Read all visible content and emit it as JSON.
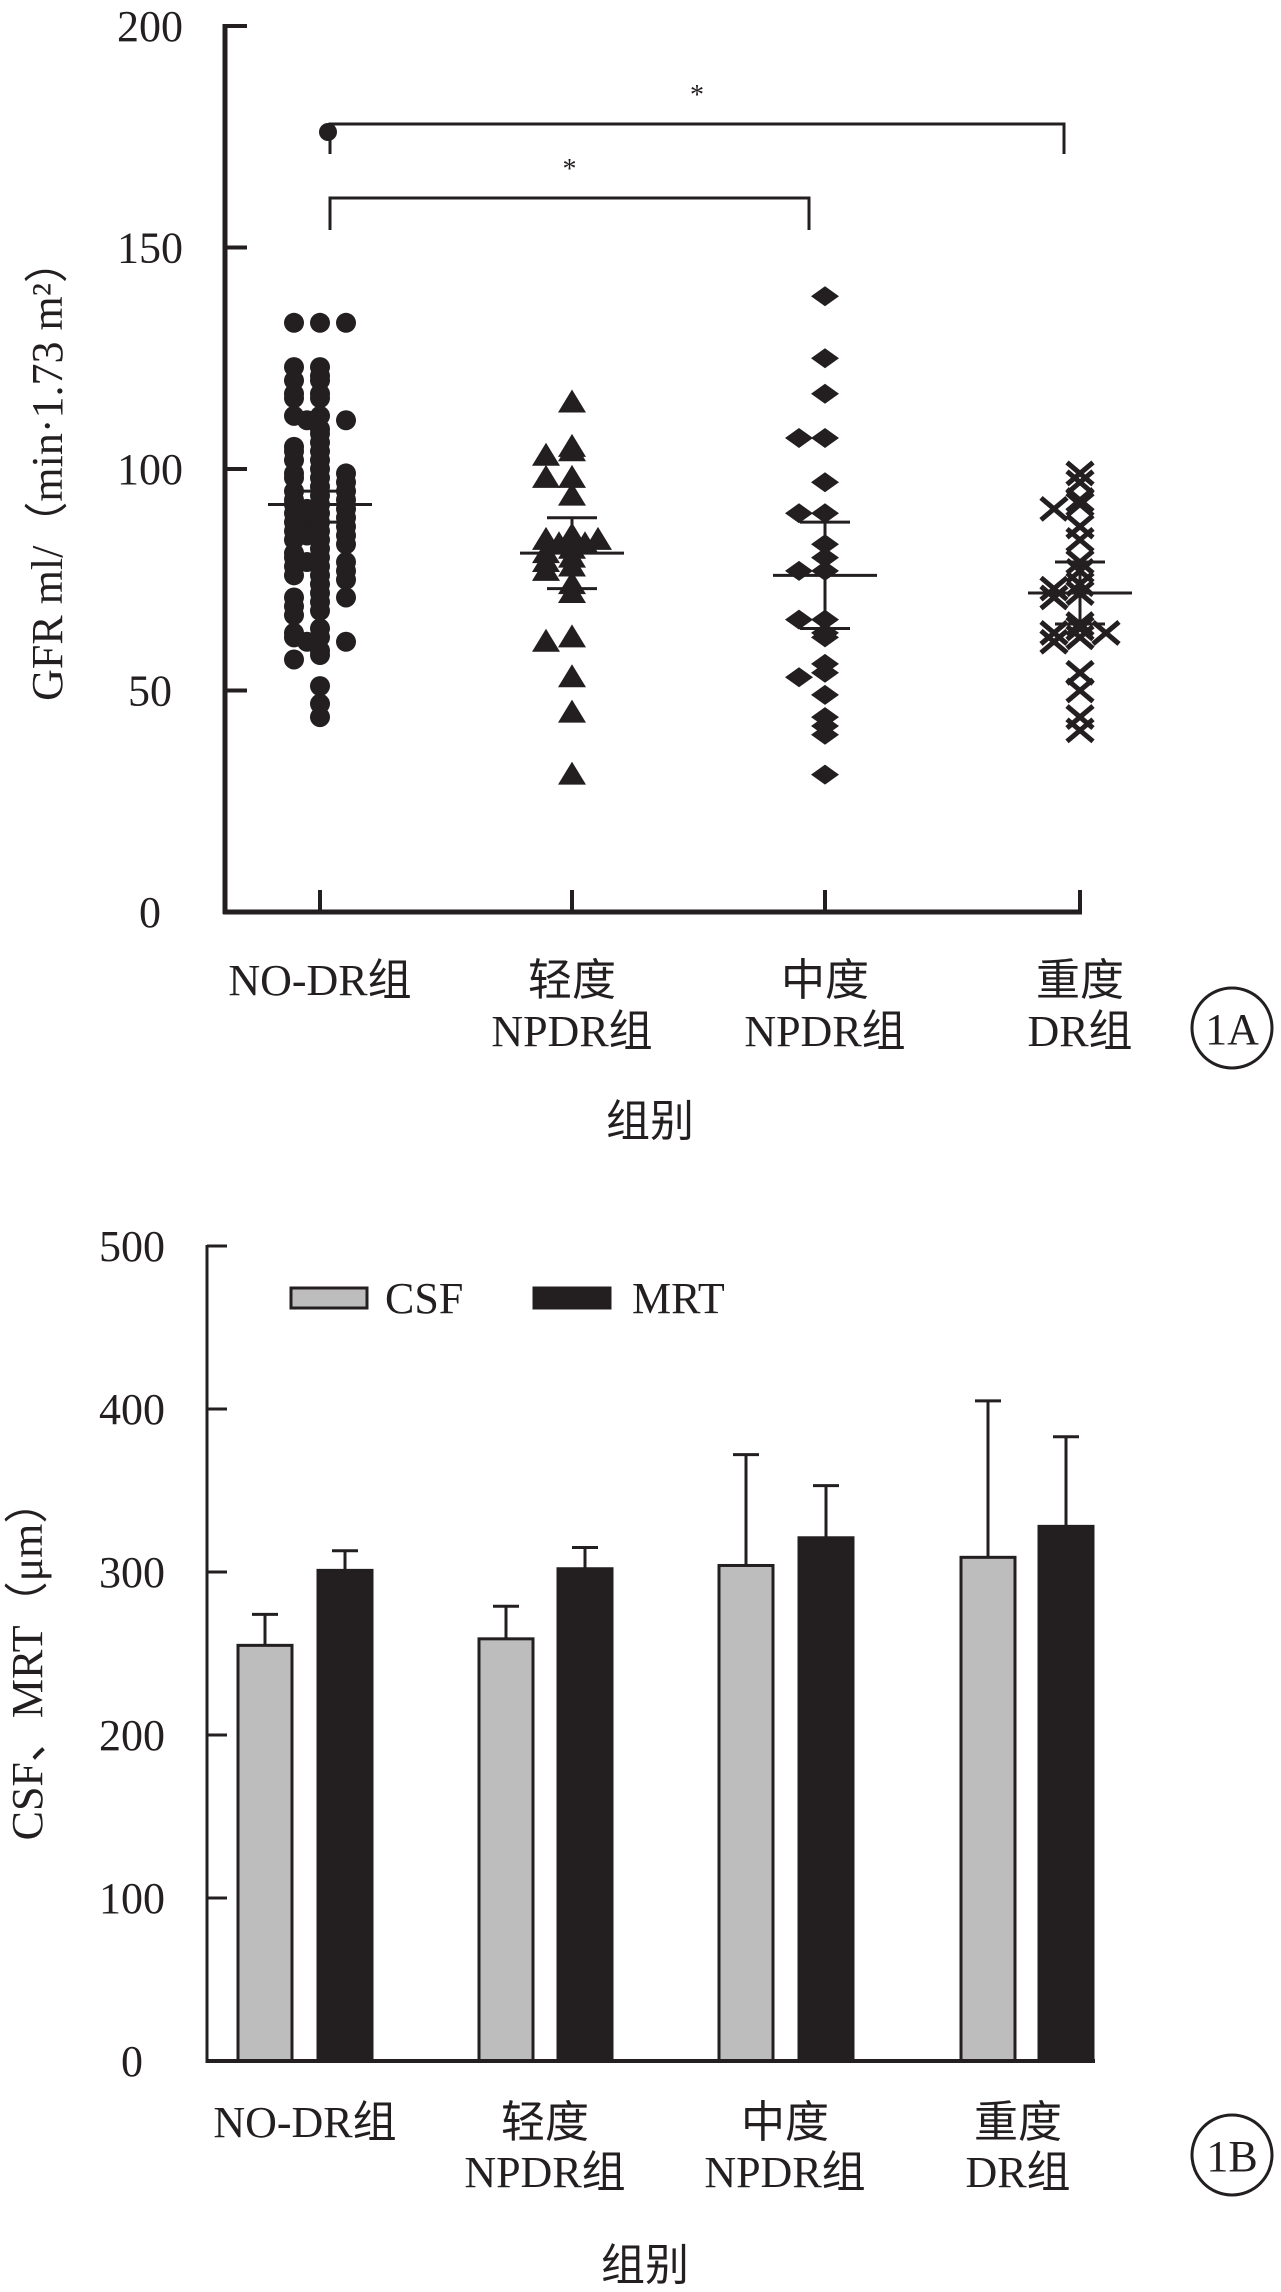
{
  "chart_data": [
    {
      "panel": "1A",
      "type": "scatter",
      "title": "",
      "xlabel": "组别",
      "ylabel": "GFR ml/（min·1.73 m²）",
      "ylim": [
        0,
        200
      ],
      "yticks": [
        "0",
        "50",
        "100",
        "150",
        "200"
      ],
      "ytick_values": [
        0,
        50,
        100,
        150,
        200
      ],
      "grid": false,
      "categories": [
        {
          "line1": "NO-DR组",
          "line2": ""
        },
        {
          "line1": "轻度",
          "line2": "NPDR组"
        },
        {
          "line1": "中度",
          "line2": "NPDR组"
        },
        {
          "line1": "重度",
          "line2": "DR组"
        }
      ],
      "series": [
        {
          "name": "NO-DR组",
          "marker": "circle",
          "mean": 92,
          "err_low": 88,
          "err_high": 95,
          "values": [
            133,
            133,
            133,
            123,
            123,
            121,
            120,
            120,
            117,
            117,
            116,
            116,
            112,
            112,
            111,
            111,
            109,
            108,
            106,
            105,
            104,
            104,
            102,
            102,
            100,
            99,
            99,
            98,
            98,
            97,
            96,
            95,
            95,
            94,
            93,
            93,
            92,
            92,
            91,
            91,
            90,
            90,
            89,
            89,
            88,
            88,
            87,
            86,
            86,
            85,
            85,
            84,
            84,
            83,
            82,
            81,
            80,
            80,
            79,
            79,
            78,
            78,
            77,
            76,
            76,
            75,
            74,
            72,
            71,
            71,
            70,
            69,
            68,
            67,
            64,
            63,
            62,
            62,
            61,
            61,
            59,
            58,
            57,
            51,
            47,
            44
          ]
        },
        {
          "name": "轻度NPDR组",
          "marker": "triangle",
          "mean": 81,
          "err_low": 73,
          "err_high": 89,
          "values": [
            115,
            105,
            104,
            103,
            98,
            98,
            94,
            85,
            84,
            84,
            84,
            83,
            83,
            82,
            81,
            80,
            79,
            78,
            77,
            74,
            72,
            62,
            61,
            53,
            45,
            31
          ]
        },
        {
          "name": "中度NPDR组",
          "marker": "diamond",
          "mean": 76,
          "err_low": 64,
          "err_high": 88,
          "values": [
            139,
            125,
            117,
            107,
            107,
            97,
            90,
            90,
            83,
            80,
            77,
            77,
            66,
            66,
            63,
            62,
            56,
            54,
            53,
            49,
            44,
            42,
            40,
            31
          ]
        },
        {
          "name": "重度DR组",
          "marker": "x",
          "mean": 72,
          "err_low": 65,
          "err_high": 79,
          "values": [
            99,
            97,
            93,
            92,
            91,
            87,
            84,
            79,
            77,
            74,
            73,
            72,
            71,
            65,
            64,
            63,
            63,
            62,
            61,
            54,
            50,
            44,
            41
          ]
        }
      ],
      "significance": [
        {
          "from": 0,
          "to": 3,
          "label": "*"
        },
        {
          "from": 0,
          "to": 2,
          "label": "*"
        }
      ]
    },
    {
      "panel": "1B",
      "type": "bar",
      "title": "",
      "xlabel": "组别",
      "ylabel": "CSF、MRT（μm）",
      "ylim": [
        0,
        500
      ],
      "yticks": [
        "0",
        "100",
        "200",
        "300",
        "400",
        "500"
      ],
      "ytick_values": [
        0,
        100,
        200,
        300,
        400,
        500
      ],
      "grid": false,
      "legend": "top-left",
      "categories": [
        {
          "line1": "NO-DR组",
          "line2": ""
        },
        {
          "line1": "轻度",
          "line2": "NPDR组"
        },
        {
          "line1": "中度",
          "line2": "NPDR组"
        },
        {
          "line1": "重度",
          "line2": "DR组"
        }
      ],
      "series": [
        {
          "name": "CSF",
          "color": "#bdbdbd",
          "values": [
            255,
            259,
            304,
            309
          ],
          "err_high": [
            274,
            279,
            372,
            405
          ]
        },
        {
          "name": "MRT",
          "color": "#231f20",
          "values": [
            301,
            302,
            321,
            328
          ],
          "err_high": [
            313,
            315,
            353,
            383
          ]
        }
      ]
    }
  ],
  "panels": {
    "a": {
      "label": "1A"
    },
    "b": {
      "label": "1B"
    }
  }
}
